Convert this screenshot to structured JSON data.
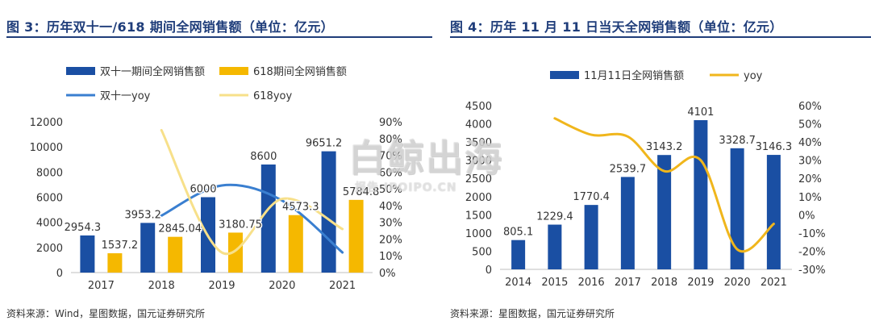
{
  "colors": {
    "blue_bar": "#1a4fa3",
    "yellow_bar": "#f5b800",
    "blue_line": "#3a7fd0",
    "yellow_line": "#f7e08a",
    "title_color": "#1f3d7a",
    "yoy_line": "#f0b61c"
  },
  "left": {
    "title": "图 3：历年双十一/618 期间全网销售额（单位：亿元）",
    "source": "资料来源：Wind，星图数据，国元证券研究所"
  },
  "right": {
    "title": "图 4：历年 11 月 11 日当天全网销售额（单位：亿元）",
    "source": "资料来源：星图数据，国元证券研究所"
  },
  "watermark": {
    "main": "白鲸出海",
    "sub": "报告 IPOIPO.CN"
  },
  "chart_data": [
    {
      "type": "bar",
      "categories": [
        "2017",
        "2018",
        "2019",
        "2020",
        "2021"
      ],
      "series": [
        {
          "name": "双十一期间全网销售额",
          "kind": "bar",
          "axis": "left",
          "values": [
            2954.3,
            3953.2,
            6000,
            8600,
            9651.2
          ],
          "labels": [
            "2954.3",
            "3953.2",
            "6000",
            "8600",
            "9651.2"
          ]
        },
        {
          "name": "618期间全网销售额",
          "kind": "bar",
          "axis": "left",
          "values": [
            1537.2,
            2845.04,
            3180.75,
            4573.3,
            5784.8
          ],
          "labels": [
            "1537.2",
            "2845.04",
            "3180.75",
            "4573.3",
            "5784.8"
          ]
        },
        {
          "name": "双十一yoy",
          "kind": "line",
          "axis": "right",
          "values": [
            null,
            34,
            52,
            43,
            12
          ]
        },
        {
          "name": "618yoy",
          "kind": "line",
          "axis": "right",
          "values": [
            null,
            85,
            12,
            44,
            26
          ]
        }
      ],
      "y_left": {
        "min": 0,
        "max": 12000,
        "ticks": [
          "0",
          "2000",
          "4000",
          "6000",
          "8000",
          "10000",
          "12000"
        ]
      },
      "y_right": {
        "min": 0,
        "max": 90,
        "ticks": [
          "0%",
          "10%",
          "20%",
          "30%",
          "40%",
          "50%",
          "60%",
          "70%",
          "80%",
          "90%"
        ]
      },
      "legend_position": "top",
      "grid": false
    },
    {
      "type": "bar",
      "categories": [
        "2014",
        "2015",
        "2016",
        "2017",
        "2018",
        "2019",
        "2020",
        "2021"
      ],
      "series": [
        {
          "name": "11月11日全网销售额",
          "kind": "bar",
          "axis": "left",
          "values": [
            805.1,
            1229.4,
            1770.4,
            2539.7,
            3143.2,
            4101,
            3328.7,
            3146.3
          ],
          "labels": [
            "805.1",
            "1229.4",
            "1770.4",
            "2539.7",
            "3143.2",
            "4101",
            "3328.7",
            "3146.3"
          ]
        },
        {
          "name": "yoy",
          "kind": "line",
          "axis": "right",
          "values": [
            null,
            53,
            44,
            43,
            24,
            30,
            -19,
            -5
          ]
        }
      ],
      "y_left": {
        "min": 0,
        "max": 4500,
        "ticks": [
          "0",
          "500",
          "1000",
          "1500",
          "2000",
          "2500",
          "3000",
          "3500",
          "4000",
          "4500"
        ]
      },
      "y_right": {
        "min": -30,
        "max": 60,
        "ticks": [
          "-30%",
          "-20%",
          "-10%",
          "0%",
          "10%",
          "20%",
          "30%",
          "40%",
          "50%",
          "60%"
        ]
      },
      "legend_position": "top",
      "grid": false
    }
  ]
}
